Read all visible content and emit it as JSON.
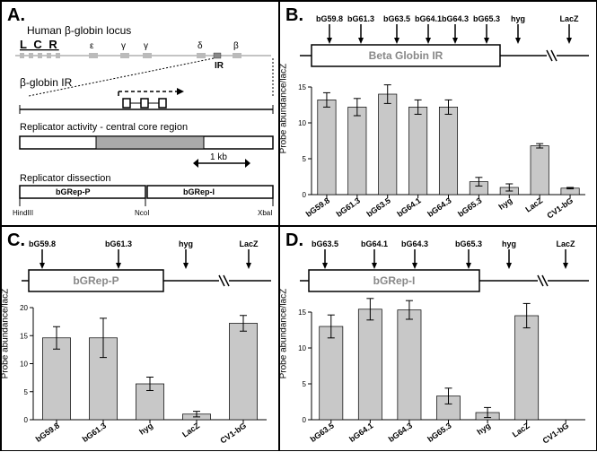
{
  "panelA": {
    "letter": "A.",
    "locus_title": "Human β-globin locus",
    "lcr_label": "L C R",
    "gene_labels": [
      "ε",
      "γ",
      "γ",
      "δ",
      "β"
    ],
    "ir_label": "IR",
    "ir_region_label": "β-globin IR",
    "replicator_activity_label": "Replicator activity - central core region",
    "scale_label": "1 kb",
    "dissection_label": "Replicator dissection",
    "left_frag": "bGRep-P",
    "right_frag": "bGRep-I",
    "sites": [
      "HindIII",
      "NcoI",
      "XbaI"
    ]
  },
  "panelB": {
    "letter": "B.",
    "region_label": "Beta Globin IR",
    "ylabel": "Probe abundance/lacZ",
    "ylim": [
      0,
      15
    ],
    "ytick_step": 5,
    "probe_arrows": [
      "bG59.8",
      "bG61.3",
      "bG63.5",
      "bG64.1",
      "bG64.3",
      "bG65.3",
      "hyg",
      "LacZ"
    ],
    "categories": [
      "bG59.8",
      "bG61.3",
      "bG63.5",
      "bG64.1",
      "bG64.3",
      "bG65.3",
      "hyg",
      "LacZ",
      "CV1-bG"
    ],
    "values": [
      13.2,
      12.2,
      14.0,
      12.2,
      12.2,
      1.8,
      1.0,
      6.8,
      0.9
    ],
    "errors": [
      1.0,
      1.2,
      1.3,
      1.0,
      1.0,
      0.6,
      0.5,
      0.3,
      0.1
    ],
    "bar_color": "#c8c8c8"
  },
  "panelC": {
    "letter": "C.",
    "region_label": "bGRep-P",
    "ylabel": "Probe abundance/lacZ",
    "ylim": [
      0,
      20
    ],
    "ytick_step": 5,
    "probe_arrows": [
      "bG59.8",
      "bG61.3",
      "hyg",
      "LacZ"
    ],
    "categories": [
      "bG59.8",
      "bG61.3",
      "hyg",
      "LacZ",
      "CV1-bG"
    ],
    "values": [
      14.6,
      14.6,
      6.4,
      1.0,
      17.2
    ],
    "errors": [
      2.0,
      3.5,
      1.2,
      0.5,
      1.4
    ],
    "bar_color": "#b0b0b0"
  },
  "panelD": {
    "letter": "D.",
    "region_label": "bGRep-I",
    "ylabel": "Probe abundance/lacZ",
    "ylim": [
      0,
      15
    ],
    "ytick_step": 5,
    "probe_arrows": [
      "bG63.5",
      "bG64.1",
      "bG64.3",
      "bG65.3",
      "hyg",
      "LacZ"
    ],
    "categories": [
      "bG63.5",
      "bG64.1",
      "bG64.3",
      "bG65.3",
      "hyg",
      "LacZ",
      "CV1-bG"
    ],
    "values": [
      13.0,
      15.4,
      15.3,
      3.3,
      1.0,
      14.5,
      0
    ],
    "errors": [
      1.6,
      1.5,
      1.3,
      1.1,
      0.7,
      1.7,
      0
    ],
    "bar_color": "#b0b0b0",
    "skip_last_bar": true
  }
}
